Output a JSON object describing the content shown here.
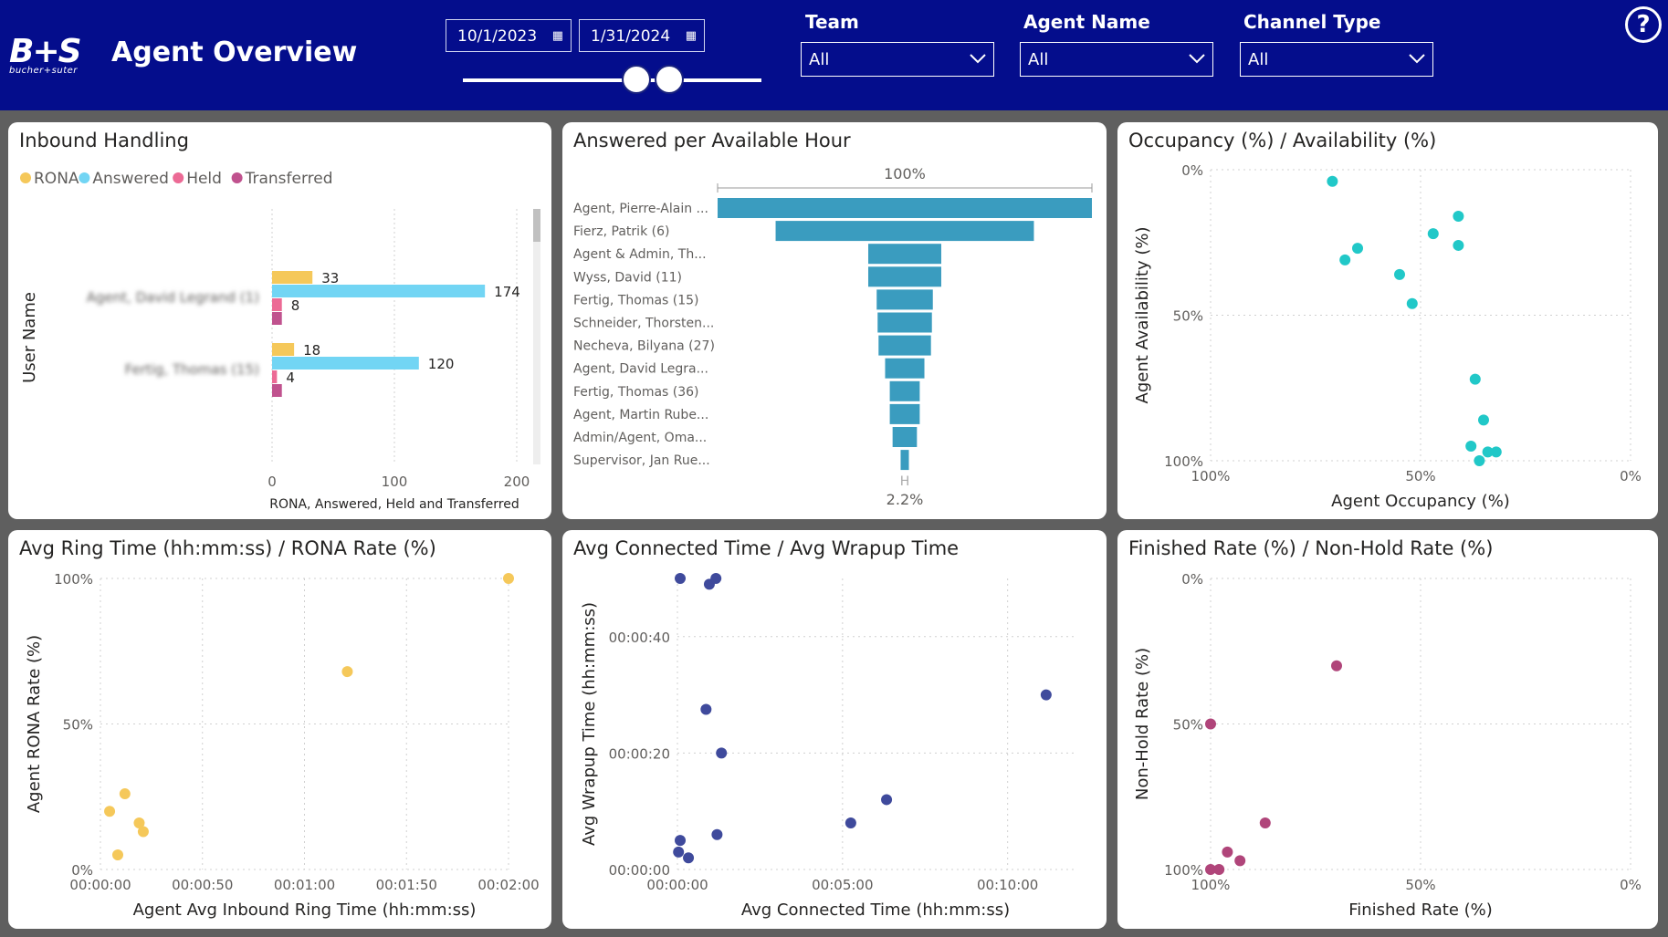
{
  "header": {
    "logo_mark": "B+S",
    "logo_sub": "bucher+suter",
    "title": "Agent Overview",
    "date_start": "10/1/2023",
    "date_end": "1/31/2024",
    "date_slider": {
      "start_fraction": 0.58,
      "end_fraction": 0.69
    },
    "filters": [
      {
        "label": "Team",
        "value": "All"
      },
      {
        "label": "Agent Name",
        "value": "All"
      },
      {
        "label": "Channel Type",
        "value": "All"
      }
    ],
    "help_label": "?",
    "colors": {
      "header_bg": "#040d8c"
    }
  },
  "cards": {
    "inbound_title": "Inbound Handling",
    "answered_title": "Answered per Available Hour",
    "occupancy_title": "Occupancy (%) / Availability (%)",
    "ring_title": "Avg Ring Time (hh:mm:ss) / RONA Rate (%)",
    "connected_title": "Avg Connected Time / Avg Wrapup Time",
    "finished_title": "Finished Rate (%) / Non-Hold Rate (%)"
  },
  "chart_data": [
    {
      "id": "inbound",
      "type": "bar",
      "title": "Inbound Handling",
      "legend": [
        {
          "name": "RONA",
          "color": "#f5c85a"
        },
        {
          "name": "Answered",
          "color": "#72d5f4"
        },
        {
          "name": "Held",
          "color": "#ec6a95"
        },
        {
          "name": "Transferred",
          "color": "#c0528e"
        }
      ],
      "categories": [
        "Agent, David Legrand (1)",
        "Fertig, Thomas (15)"
      ],
      "series": [
        {
          "name": "RONA",
          "values": [
            33,
            18
          ]
        },
        {
          "name": "Answered",
          "values": [
            174,
            120
          ]
        },
        {
          "name": "Held",
          "values": [
            8,
            4
          ]
        },
        {
          "name": "Transferred",
          "values": [
            8,
            8
          ]
        }
      ],
      "data_labels": [
        "33",
        "174",
        "8",
        "18",
        "120",
        "4"
      ],
      "xlabel": "RONA, Answered, Held and Transferred",
      "ylabel": "User Name",
      "xticks": [
        "0",
        "100",
        "200"
      ],
      "xlim": [
        0,
        200
      ]
    },
    {
      "id": "answered",
      "type": "bar",
      "title": "Answered per Available Hour",
      "top_label": "100%",
      "bottom_label": "2.2%",
      "bottom_mark": "H",
      "color": "#3a9cbf",
      "categories": [
        "Agent, Pierre-Alain ...",
        "Fierz, Patrik (6)",
        "Agent & Admin, Th...",
        "Wyss, David (11)",
        "Fertig, Thomas (15)",
        "Schneider, Thorsten...",
        "Necheva, Bilyana (27)",
        "Agent, David Legra...",
        "Fertig, Thomas (36)",
        "Agent, Martin Rube...",
        "Admin/Agent, Oma...",
        "Supervisor, Jan Rue..."
      ],
      "values": [
        100,
        69,
        19.5,
        19.5,
        15,
        14.5,
        14,
        10.5,
        8,
        8,
        6.5,
        2.2
      ]
    },
    {
      "id": "occupancy",
      "type": "scatter",
      "title": "Occupancy (%) / Availability (%)",
      "color": "#21c8c8",
      "xlabel": "Agent Occupancy (%)",
      "ylabel": "Agent Availability (%)",
      "xticks": [
        "100%",
        "50%",
        "0%"
      ],
      "yticks": [
        "0%",
        "50%",
        "100%"
      ],
      "xlim": [
        100,
        0
      ],
      "ylim": [
        0,
        100
      ],
      "points": [
        [
          71,
          4
        ],
        [
          68,
          31
        ],
        [
          65,
          27
        ],
        [
          55,
          36
        ],
        [
          52,
          46
        ],
        [
          47,
          22
        ],
        [
          41,
          16
        ],
        [
          41,
          26
        ],
        [
          37,
          72
        ],
        [
          35,
          86
        ],
        [
          38,
          95
        ],
        [
          32,
          97
        ],
        [
          34,
          97
        ],
        [
          36,
          100
        ]
      ]
    },
    {
      "id": "ring",
      "type": "scatter",
      "title": "Avg Ring Time (hh:mm:ss) / RONA Rate (%)",
      "color": "#f5c85a",
      "xlabel": "Agent Avg Inbound Ring Time (hh:mm:ss)",
      "ylabel": "Agent RONA Rate (%)",
      "xticks": [
        "00:00:00",
        "00:00:50",
        "00:01:00",
        "00:01:50",
        "00:02:00"
      ],
      "yticks": [
        "100%",
        "50%",
        "0%"
      ],
      "xlim_seconds": [
        0,
        200
      ],
      "ylim": [
        0,
        100
      ],
      "points": [
        [
          4.5,
          20
        ],
        [
          8.5,
          5
        ],
        [
          12,
          26
        ],
        [
          19,
          16
        ],
        [
          21,
          13
        ],
        [
          121,
          68
        ],
        [
          200,
          100
        ]
      ]
    },
    {
      "id": "connected",
      "type": "scatter",
      "title": "Avg Connected Time / Avg Wrapup Time",
      "color": "#3f4a9c",
      "xlabel": "Avg Connected Time (hh:mm:ss)",
      "ylabel": "Avg Wrapup Time (hh:mm:ss)",
      "xticks": [
        "00:00:00",
        "00:05:00",
        "00:10:00"
      ],
      "yticks": [
        "00:00:40",
        "00:00:20",
        "00:00:00"
      ],
      "xlim_seconds": [
        0,
        720
      ],
      "ylim_seconds": [
        0,
        50
      ],
      "points": [
        [
          5,
          50
        ],
        [
          58,
          49
        ],
        [
          70,
          50
        ],
        [
          52,
          27.5
        ],
        [
          80,
          20
        ],
        [
          72,
          6
        ],
        [
          5,
          5
        ],
        [
          2,
          3
        ],
        [
          20,
          2
        ],
        [
          315,
          8
        ],
        [
          380,
          12
        ],
        [
          670,
          30
        ]
      ]
    },
    {
      "id": "finished",
      "type": "scatter",
      "title": "Finished Rate (%) / Non-Hold Rate (%)",
      "color": "#b0457a",
      "xlabel": "Finished Rate (%)",
      "ylabel": "Non-Hold Rate (%)",
      "xticks": [
        "100%",
        "50%",
        "0%"
      ],
      "yticks": [
        "0%",
        "50%",
        "100%"
      ],
      "xlim": [
        100,
        0
      ],
      "ylim": [
        0,
        100
      ],
      "points": [
        [
          70,
          30
        ],
        [
          100,
          50
        ],
        [
          87,
          84
        ],
        [
          96,
          94
        ],
        [
          93,
          97
        ],
        [
          100,
          100
        ],
        [
          98,
          100
        ]
      ]
    }
  ]
}
